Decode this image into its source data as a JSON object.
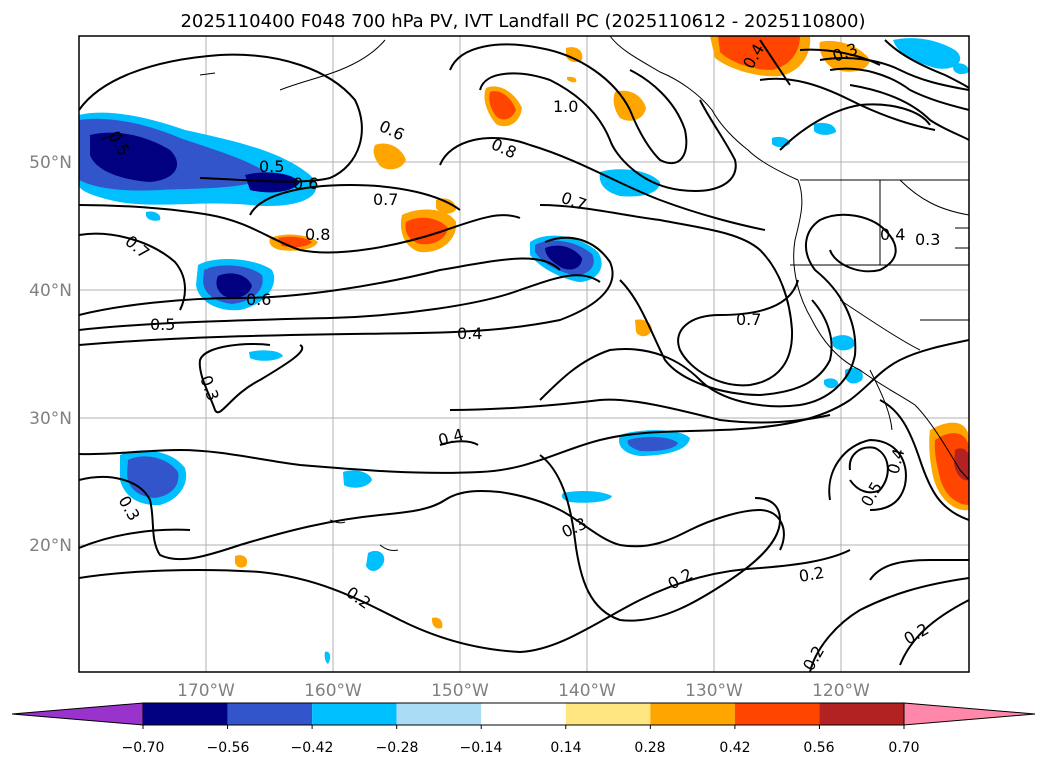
{
  "title": "2025110400 F048 700 hPa PV, IVT Landfall PC (2025110612 - 2025110800)",
  "lat_labels": [
    "50°N",
    "40°N",
    "30°N",
    "20°N"
  ],
  "lon_labels": [
    "170°W",
    "160°W",
    "150°W",
    "140°W",
    "130°W",
    "120°W"
  ],
  "contour_labels": [
    "0.5",
    "0.6",
    "0.5",
    "0.6",
    "0.7",
    "0.8",
    "0.7",
    "0.6",
    "0.5",
    "0.3",
    "0.4",
    "0.3",
    "1.0",
    "0.8",
    "0.7",
    "0.7",
    "0.4",
    "0.3",
    "0.2",
    "0.2",
    "0.2",
    "0.3",
    "0.4",
    "0.5",
    "0.4",
    "0.2",
    "0.2",
    "0.4",
    "0.3"
  ],
  "colorbar": {
    "tick_labels": [
      "−0.70",
      "−0.56",
      "−0.42",
      "−0.28",
      "−0.14",
      "0.14",
      "0.28",
      "0.42",
      "0.56",
      "0.70"
    ],
    "colors": [
      "#9933cc",
      "#000080",
      "#3355cc",
      "#00bfff",
      "#aaddf5",
      "#ffffff",
      "#ffe680",
      "#ffa500",
      "#ff4500",
      "#b22222",
      "#ff88aa"
    ]
  }
}
